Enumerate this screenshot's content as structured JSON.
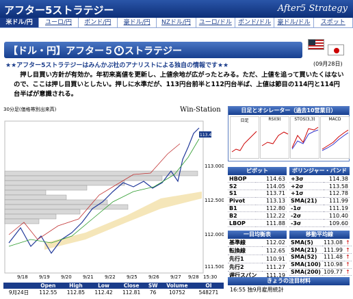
{
  "header": {
    "title": "アフター5ストラテジー",
    "brand": "After5 Strategy"
  },
  "tabs": [
    "米ドル/円",
    "ユーロ/円",
    "ポンド/円",
    "豪ドル/円",
    "NZドル/円",
    "ユーロ/ドル",
    "ポンド/ドル",
    "豪ドル/ドル",
    "スポット"
  ],
  "section": {
    "title_pre": "【ドル・円】アフター５",
    "title_post": "ストラテジー",
    "headline": "★★アフター5ストラテジーはみんかぶ社のアナリストによる独自の情報です★★",
    "date": "(09月28日)"
  },
  "comment": "　押し目買い方針が有効か。年初来高値を更新し、上値余地が広がったとみる。ただ、上値を追って買いたくはないので、ここは押し目買いとしたい。押しに水準だが、113円台前半と112円台半ば、上値は節目の114円と114円台半ばが意識される。",
  "chart": {
    "caption": "30分足(価格帯別出来高)",
    "brand": "Win-Station",
    "current_price": "113.460",
    "y_ticks": [
      "113.000",
      "112.500",
      "112.000",
      "111.500"
    ],
    "x_ticks": [
      "9/18",
      "9/19",
      "9/20",
      "9/21",
      "9/22",
      "9/25",
      "9/26",
      "9/27",
      "9/28",
      "15:30"
    ]
  },
  "ohlc": {
    "headers": [
      "",
      "Open",
      "High",
      "Low",
      "Close",
      "SW",
      "Volume",
      "OI"
    ],
    "row": [
      "9月24日",
      "112.55",
      "112.85",
      "112.42",
      "112.81",
      "76",
      "10752",
      "548271"
    ]
  },
  "oscillator": {
    "title": "日足とオシレーター（過去10営業日）",
    "labels": [
      "日足",
      "RSI(9)",
      "STOS(3,3)",
      "MACD"
    ]
  },
  "pivot": {
    "title": "ピボット",
    "rows": [
      [
        "HBOP",
        "114.63"
      ],
      [
        "S2",
        "114.05"
      ],
      [
        "S1",
        "113.71"
      ],
      [
        "Pivot",
        "113.13"
      ],
      [
        "B1",
        "112.80"
      ],
      [
        "B2",
        "112.22"
      ],
      [
        "LBOP",
        "111.88"
      ]
    ]
  },
  "bollinger": {
    "title": "ボリンジャー・バンド",
    "rows": [
      [
        "+3σ",
        "114.38"
      ],
      [
        "+2σ",
        "113.58"
      ],
      [
        "+1σ",
        "112.78"
      ],
      [
        "SMA(21)",
        "111.99"
      ],
      [
        "-1σ",
        "111.19"
      ],
      [
        "-2σ",
        "110.40"
      ],
      [
        "-3σ",
        "109.60"
      ]
    ]
  },
  "ichimoku": {
    "title": "一目均衡表",
    "rows": [
      [
        "基準線",
        "112.02"
      ],
      [
        "転換線",
        "112.65"
      ],
      [
        "先行1",
        "110.91"
      ],
      [
        "先行2",
        "111.27"
      ],
      [
        "遅行スパン",
        "111.19"
      ]
    ]
  },
  "moving_average": {
    "title": "移動平均線",
    "rows": [
      [
        "SMA(5)",
        "113.08"
      ],
      [
        "SMA(21)",
        "111.99"
      ],
      [
        "SMA(52)",
        "111.48"
      ],
      [
        "SMA(100)",
        "110.98"
      ],
      [
        "SMA(200)",
        "109.77"
      ]
    ]
  },
  "news": {
    "title": "きょうの注目材料",
    "item": "16:55  独9月雇用統計"
  },
  "colors": {
    "accent": "#1a3c8a",
    "up_arrow": "#c00"
  }
}
